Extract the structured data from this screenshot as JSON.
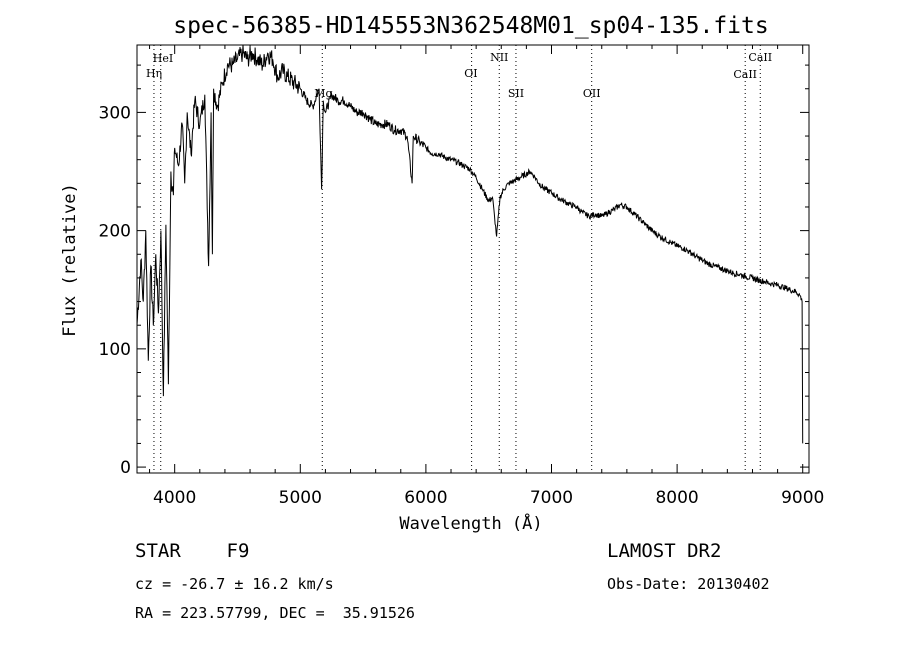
{
  "chart_data": {
    "type": "line",
    "title": "spec-56385-HD145553N362548M01_sp04-135.fits",
    "xlabel": "Wavelength (Å)",
    "ylabel": "Flux (relative)",
    "xlim": [
      3700,
      9050
    ],
    "ylim": [
      -5,
      357
    ],
    "xticks": [
      {
        "value": 4000,
        "label": "4000"
      },
      {
        "value": 5000,
        "label": "5000"
      },
      {
        "value": 6000,
        "label": "6000"
      },
      {
        "value": 7000,
        "label": "7000"
      },
      {
        "value": 8000,
        "label": "8000"
      },
      {
        "value": 9000,
        "label": "9000"
      }
    ],
    "yticks": [
      {
        "value": 0,
        "label": "0"
      },
      {
        "value": 100,
        "label": "100"
      },
      {
        "value": 200,
        "label": "200"
      },
      {
        "value": 300,
        "label": "300"
      }
    ],
    "series": [
      {
        "x": [
          3700,
          3730,
          3750,
          3770,
          3790,
          3810,
          3830,
          3850,
          3870,
          3890,
          3910,
          3930,
          3950,
          3970,
          3990,
          4000,
          4030,
          4060,
          4080,
          4100,
          4130,
          4160,
          4200,
          4240,
          4270,
          4290,
          4300,
          4310,
          4340,
          4380,
          4420,
          4460,
          4500,
          4540,
          4580,
          4620,
          4660,
          4700,
          4740,
          4780,
          4820,
          4861,
          4900,
          4950,
          5000,
          5050,
          5100,
          5150,
          5170,
          5183,
          5200,
          5250,
          5300,
          5350,
          5400,
          5450,
          5500,
          5550,
          5600,
          5650,
          5700,
          5750,
          5800,
          5850,
          5890,
          5900,
          5950,
          6000,
          6050,
          6100,
          6150,
          6200,
          6250,
          6300,
          6350,
          6400,
          6450,
          6500,
          6530,
          6563,
          6590,
          6620,
          6660,
          6700,
          6750,
          6800,
          6830,
          6870,
          6900,
          6950,
          7000,
          7050,
          7100,
          7150,
          7200,
          7250,
          7300,
          7350,
          7400,
          7450,
          7500,
          7550,
          7600,
          7650,
          7700,
          7750,
          7800,
          7850,
          7900,
          7950,
          8000,
          8050,
          8100,
          8150,
          8200,
          8250,
          8300,
          8350,
          8400,
          8450,
          8500,
          8550,
          8600,
          8650,
          8700,
          8750,
          8800,
          8850,
          8900,
          8950,
          8980,
          8995,
          9000
        ],
        "y": [
          120,
          175,
          140,
          200,
          90,
          170,
          120,
          180,
          130,
          200,
          60,
          205,
          70,
          250,
          230,
          270,
          255,
          290,
          240,
          300,
          265,
          310,
          290,
          315,
          170,
          300,
          180,
          320,
          305,
          325,
          340,
          340,
          345,
          350,
          345,
          350,
          345,
          340,
          350,
          345,
          330,
          335,
          330,
          325,
          320,
          310,
          305,
          320,
          235,
          310,
          300,
          315,
          310,
          310,
          305,
          300,
          300,
          295,
          290,
          290,
          290,
          285,
          285,
          280,
          240,
          280,
          275,
          270,
          265,
          265,
          262,
          260,
          258,
          255,
          252,
          245,
          235,
          225,
          228,
          195,
          228,
          235,
          240,
          242,
          245,
          248,
          250,
          245,
          240,
          235,
          232,
          228,
          225,
          222,
          220,
          215,
          212,
          214,
          212,
          215,
          218,
          222,
          220,
          215,
          210,
          205,
          200,
          196,
          193,
          190,
          187,
          185,
          182,
          178,
          175,
          172,
          170,
          168,
          166,
          164,
          163,
          161,
          160,
          158,
          157,
          155,
          154,
          152,
          150,
          148,
          145,
          140,
          20
        ]
      }
    ],
    "lines": [
      {
        "label": "HeI",
        "x": 3889
      },
      {
        "label": "Hη",
        "x": 3835
      },
      {
        "label": "Mg",
        "x": 5175
      },
      {
        "label": "OI",
        "x": 6364
      },
      {
        "label": "NII",
        "x": 6584
      },
      {
        "label": "SII",
        "x": 6717
      },
      {
        "label": "OII",
        "x": 7320
      },
      {
        "label": "CaII",
        "x": 8542
      },
      {
        "label": "CaII",
        "x": 8662
      }
    ]
  },
  "info": {
    "class": "STAR    F9",
    "survey": "LAMOST DR2",
    "cz": "cz = -26.7 ± 16.2 km/s",
    "obs_date": "Obs-Date: 20130402",
    "coords": "RA = 223.57799, DEC =  35.91526"
  }
}
